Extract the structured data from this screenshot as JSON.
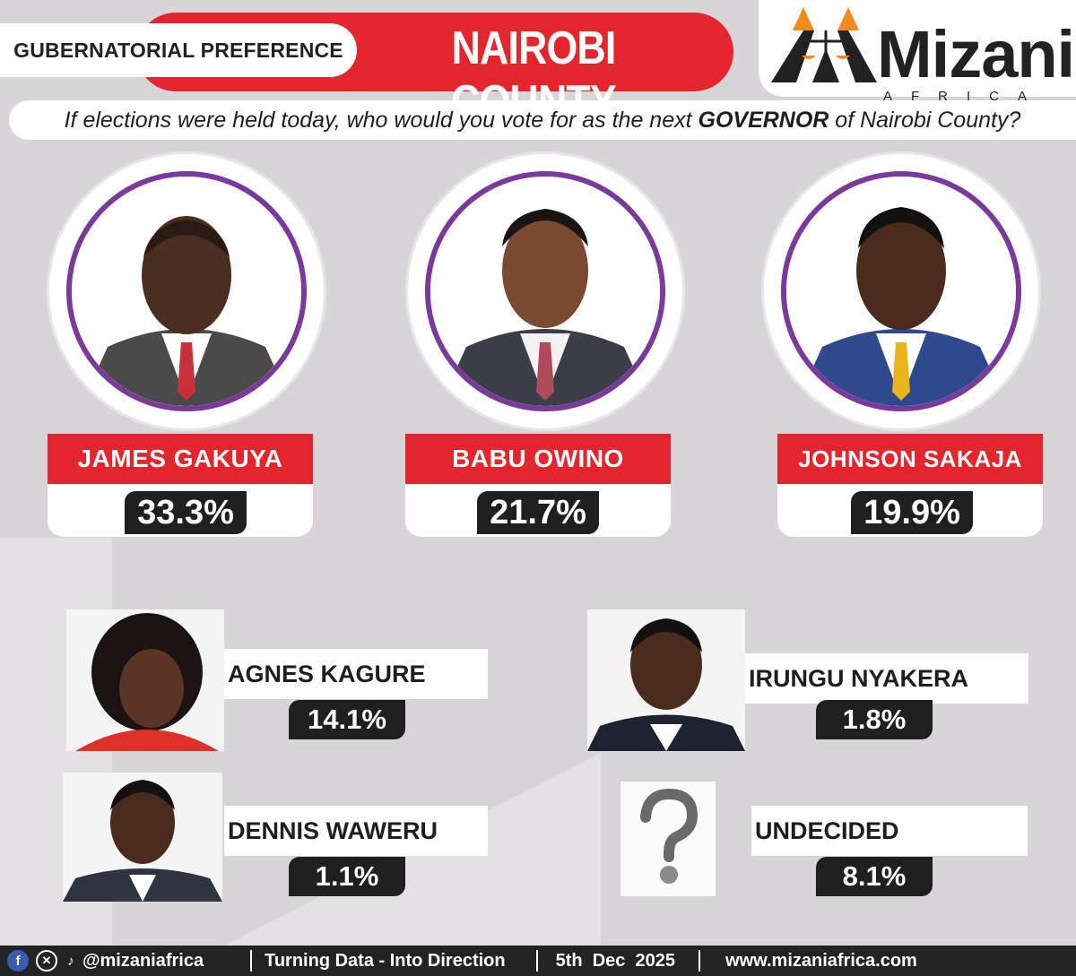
{
  "header": {
    "left_label": "GUBERNATORIAL PREFERENCE",
    "county": "NAIROBI COUNTY"
  },
  "logo": {
    "brand": "Mizani",
    "sub": "AFRICA"
  },
  "question": {
    "prefix": "If elections were held today, who would you vote for as the next ",
    "emphasis": "GOVERNOR",
    "suffix": " of Nairobi County?"
  },
  "top_candidates": [
    {
      "name": "JAMES GAKUYA",
      "pct": "33.3%"
    },
    {
      "name": "BABU OWINO",
      "pct": "21.7%"
    },
    {
      "name": "JOHNSON SAKAJA",
      "pct": "19.9%"
    }
  ],
  "other_candidates": [
    {
      "name": "AGNES KAGURE",
      "pct": "14.1%"
    },
    {
      "name": "IRUNGU NYAKERA",
      "pct": "1.8%"
    },
    {
      "name": "DENNIS WAWERU",
      "pct": "1.1%"
    },
    {
      "name": "UNDECIDED",
      "pct": "8.1%"
    }
  ],
  "footer": {
    "handle": "@mizaniafrica",
    "tagline": "Turning Data - Into Direction",
    "date": "5th  Dec  2025",
    "website": "www.mizaniafrica.com"
  },
  "colors": {
    "accent_red": "#e3262e",
    "ring_purple": "#7a3a9c",
    "logo_orange": "#f08a1c"
  }
}
